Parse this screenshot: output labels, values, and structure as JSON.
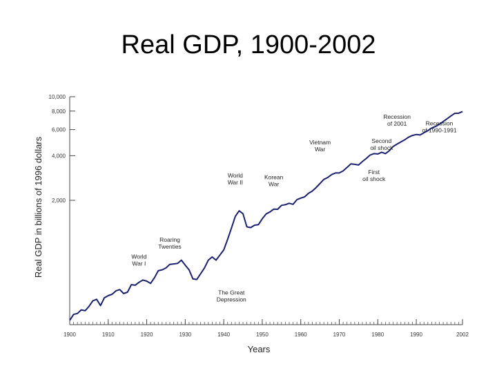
{
  "slide": {
    "title": "Real GDP, 1900-2002"
  },
  "chart_data": {
    "type": "line",
    "title": "",
    "xlabel": "Years",
    "ylabel": "Real GDP in billions of 1996 dollars",
    "y_scale": "log",
    "xlim": [
      1900,
      2002
    ],
    "x_ticks": [
      1900,
      1910,
      1920,
      1930,
      1940,
      1950,
      1960,
      1970,
      1980,
      1990,
      2002
    ],
    "x_tick_labels": [
      "1900",
      "1910",
      "1920",
      "1930",
      "1940",
      "1950",
      "1960",
      "1970",
      "1980",
      "1990",
      "2002"
    ],
    "y_ticks": [
      2000,
      4000,
      6000,
      8000,
      10000
    ],
    "y_tick_labels": [
      "2,000",
      "4,000",
      "6,000",
      "8,000",
      "10,000"
    ],
    "line_color": "#1a1f6e",
    "series": [
      {
        "x": [
          1900,
          1901,
          1902,
          1903,
          1904,
          1905,
          1906,
          1907,
          1908,
          1909,
          1910,
          1911,
          1912,
          1913,
          1914,
          1915,
          1916,
          1917,
          1918,
          1919,
          1920,
          1921,
          1922,
          1923,
          1924,
          1925,
          1926,
          1927,
          1928,
          1929,
          1930,
          1931,
          1932,
          1933,
          1934,
          1935,
          1936,
          1937,
          1938,
          1939,
          1940,
          1941,
          1942,
          1943,
          1944,
          1945,
          1946,
          1947,
          1948,
          1949,
          1950,
          1951,
          1952,
          1953,
          1954,
          1955,
          1956,
          1957,
          1958,
          1959,
          1960,
          1961,
          1962,
          1963,
          1964,
          1965,
          1966,
          1967,
          1968,
          1969,
          1970,
          1971,
          1972,
          1973,
          1974,
          1975,
          1976,
          1977,
          1978,
          1979,
          1980,
          1981,
          1982,
          1983,
          1984,
          1985,
          1986,
          1987,
          1988,
          1989,
          1990,
          1991,
          1992,
          1993,
          1994,
          1995,
          1996,
          1997,
          1998,
          1999,
          2000,
          2001,
          2002
        ],
        "y": [
          310,
          340,
          345,
          365,
          360,
          385,
          420,
          430,
          390,
          440,
          455,
          465,
          490,
          500,
          470,
          480,
          540,
          535,
          560,
          580,
          570,
          550,
          600,
          670,
          680,
          700,
          740,
          745,
          750,
          790,
          730,
          680,
          590,
          585,
          640,
          700,
          790,
          830,
          790,
          855,
          925,
          1090,
          1300,
          1560,
          1700,
          1625,
          1325,
          1310,
          1360,
          1370,
          1500,
          1620,
          1670,
          1745,
          1740,
          1850,
          1870,
          1910,
          1880,
          2020,
          2070,
          2110,
          2230,
          2310,
          2440,
          2600,
          2770,
          2850,
          2980,
          3060,
          3060,
          3160,
          3330,
          3520,
          3500,
          3460,
          3650,
          3830,
          4040,
          4130,
          4110,
          4220,
          4130,
          4320,
          4620,
          4790,
          4950,
          5120,
          5330,
          5480,
          5560,
          5520,
          5720,
          5900,
          6150,
          6300,
          6520,
          6800,
          7100,
          7420,
          7720,
          7740,
          7950
        ]
      }
    ],
    "annotations": [
      {
        "lines": [
          "World",
          "War I"
        ],
        "x": 1918
      },
      {
        "lines": [
          "Roaring",
          "Twenties"
        ],
        "x": 1927
      },
      {
        "lines": [
          "The Great",
          "Depression"
        ],
        "x": 1933
      },
      {
        "lines": [
          "World",
          "War II"
        ],
        "x": 1944
      },
      {
        "lines": [
          "Korean",
          "War"
        ],
        "x": 1951
      },
      {
        "lines": [
          "Vietnam",
          "War"
        ],
        "x": 1968
      },
      {
        "lines": [
          "First",
          "oil shock"
        ],
        "x": 1974
      },
      {
        "lines": [
          "Second",
          "oil shock"
        ],
        "x": 1980
      },
      {
        "lines": [
          "Recession",
          "of 1990-1991"
        ],
        "x": 1991
      },
      {
        "lines": [
          "Recession",
          "of 2001"
        ],
        "x": 2001
      }
    ]
  }
}
